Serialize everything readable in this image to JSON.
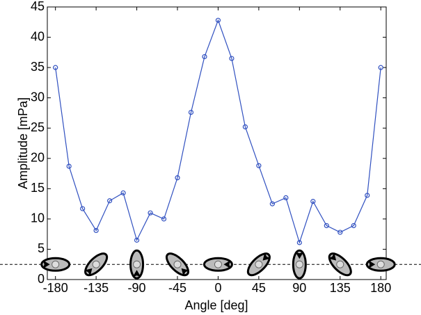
{
  "chart_data": {
    "type": "line",
    "x_label": "Angle [deg]",
    "y_label": "Amplitude [mPa]",
    "x": [
      -180,
      -165,
      -150,
      -135,
      -120,
      -105,
      -90,
      -75,
      -60,
      -45,
      -30,
      -15,
      0,
      15,
      30,
      45,
      60,
      75,
      90,
      105,
      120,
      135,
      150,
      165,
      180
    ],
    "series": [
      {
        "color": "#3050c0",
        "values": [
          35,
          18.7,
          11.7,
          8.1,
          13,
          14.3,
          6.5,
          11,
          10,
          16.8,
          27.6,
          36.8,
          42.8,
          36.5,
          25.2,
          18.8,
          12.5,
          13.5,
          6.1,
          12.9,
          8.9,
          7.8,
          8.9,
          13.9,
          35
        ]
      }
    ],
    "xlim": [
      -189,
      186
    ],
    "ylim": [
      0,
      45
    ],
    "xticks": [
      -180,
      -135,
      -90,
      -45,
      0,
      45,
      90,
      135,
      180
    ],
    "yticks": [
      0,
      5,
      10,
      15,
      20,
      25,
      30,
      35,
      40,
      45
    ],
    "reference_line": 2.5,
    "grid": false
  }
}
